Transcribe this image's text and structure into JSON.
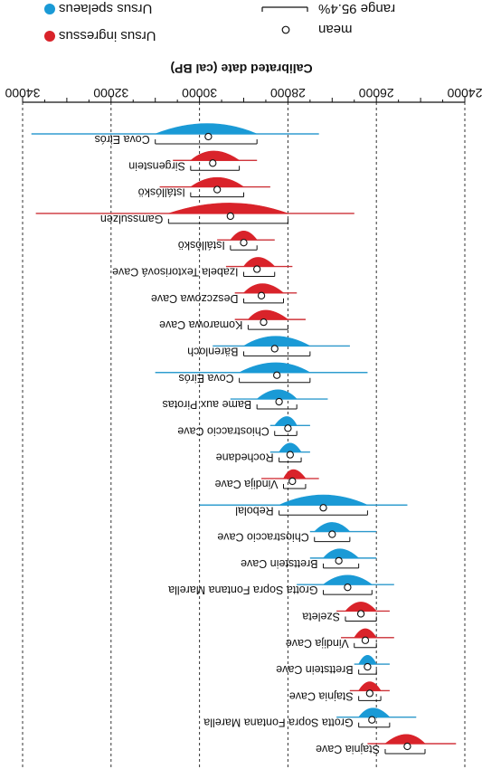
{
  "chart_data": {
    "type": "violin-range",
    "title": "",
    "xlabel": "Calibrated date (cal BP)",
    "ylabel": "",
    "xlim": [
      34000,
      24000
    ],
    "x_ticks": [
      "34000",
      "32000",
      "30000",
      "28000",
      "26000",
      "24000"
    ],
    "grid": "vertical dashed",
    "legend_placement": "top",
    "legend": {
      "species": [
        {
          "name": "Ursus spelaeus",
          "color": "#1a9ad6"
        },
        {
          "name": "Ursus ingressus",
          "color": "#d9232a"
        }
      ],
      "range_label": "range 95.4%",
      "mean_label": "mean"
    },
    "series": [
      {
        "site": "Cova Eirós",
        "species": "Ursus spelaeus",
        "mean": 29800,
        "range": [
          31000,
          28700
        ],
        "tail": [
          33800,
          27300
        ]
      },
      {
        "site": "Sirgenstein",
        "species": "Ursus ingressus",
        "mean": 29700,
        "range": [
          30200,
          29100
        ],
        "tail": [
          30600,
          28700
        ]
      },
      {
        "site": "Istállóskö",
        "species": "Ursus ingressus",
        "mean": 29600,
        "range": [
          30200,
          29000
        ],
        "tail": [
          30900,
          28400
        ]
      },
      {
        "site": "Gamssulzen",
        "species": "Ursus ingressus",
        "mean": 29300,
        "range": [
          30700,
          28000
        ],
        "tail": [
          33700,
          26500
        ]
      },
      {
        "site": "Istállóskö",
        "species": "Ursus ingressus",
        "mean": 29000,
        "range": [
          29300,
          28700
        ],
        "tail": [
          29600,
          28300
        ]
      },
      {
        "site": "Izabela Textorisová Cave",
        "species": "Ursus ingressus",
        "mean": 28700,
        "range": [
          29000,
          28300
        ],
        "tail": [
          29400,
          27900
        ]
      },
      {
        "site": "Deszczowa Cave",
        "species": "Ursus ingressus",
        "mean": 28600,
        "range": [
          29000,
          28100
        ],
        "tail": [
          29200,
          27800
        ]
      },
      {
        "site": "Komarowa Cave",
        "species": "Ursus ingressus",
        "mean": 28550,
        "range": [
          28900,
          28000
        ],
        "tail": [
          29200,
          27600
        ]
      },
      {
        "site": "Bärenloch",
        "species": "Ursus spelaeus",
        "mean": 28300,
        "range": [
          29000,
          27500
        ],
        "tail": [
          29700,
          26600
        ]
      },
      {
        "site": "Cova Eirós",
        "species": "Ursus spelaeus",
        "mean": 28250,
        "range": [
          29100,
          27500
        ],
        "tail": [
          31000,
          26200
        ]
      },
      {
        "site": "Bame aux Pirotas",
        "species": "Ursus spelaeus",
        "mean": 28200,
        "range": [
          28700,
          27800
        ],
        "tail": [
          29300,
          27100
        ]
      },
      {
        "site": "Chiostraccio Cave",
        "species": "Ursus spelaeus",
        "mean": 28000,
        "range": [
          28300,
          27800
        ],
        "tail": [
          28400,
          27500
        ]
      },
      {
        "site": "Rochedane",
        "species": "Ursus spelaeus",
        "mean": 27950,
        "range": [
          28200,
          27700
        ],
        "tail": [
          28400,
          27500
        ]
      },
      {
        "site": "Vindija Cave",
        "species": "Ursus ingressus",
        "mean": 27900,
        "range": [
          28100,
          27600
        ],
        "tail": [
          28600,
          27300
        ]
      },
      {
        "site": "Rebolal",
        "species": "Ursus spelaeus",
        "mean": 27200,
        "range": [
          28200,
          26200
        ],
        "tail": [
          30000,
          25300
        ]
      },
      {
        "site": "Chiostraccio Cave",
        "species": "Ursus spelaeus",
        "mean": 27000,
        "range": [
          27400,
          26600
        ],
        "tail": [
          27500,
          26000
        ]
      },
      {
        "site": "Brettstein Cave",
        "species": "Ursus spelaeus",
        "mean": 26850,
        "range": [
          27200,
          26400
        ],
        "tail": [
          27500,
          26000
        ]
      },
      {
        "site": "Grotta Sopra Fontana Marella",
        "species": "Ursus spelaeus",
        "mean": 26650,
        "range": [
          27200,
          26100
        ],
        "tail": [
          27800,
          25600
        ]
      },
      {
        "site": "Szeleta",
        "species": "Ursus ingressus",
        "mean": 26350,
        "range": [
          26700,
          26000
        ],
        "tail": [
          26900,
          25700
        ]
      },
      {
        "site": "Vindija Cave",
        "species": "Ursus ingressus",
        "mean": 26250,
        "range": [
          26500,
          26000
        ],
        "tail": [
          26800,
          25600
        ]
      },
      {
        "site": "Brettstein Cave",
        "species": "Ursus spelaeus",
        "mean": 26200,
        "range": [
          26400,
          26000
        ],
        "tail": [
          26500,
          25700
        ]
      },
      {
        "site": "Stajnia Cave",
        "species": "Ursus ingressus",
        "mean": 26150,
        "range": [
          26400,
          25900
        ],
        "tail": [
          26600,
          25700
        ]
      },
      {
        "site": "Grotta Sopra Fontana Marella",
        "species": "Ursus spelaeus",
        "mean": 26100,
        "range": [
          26400,
          25700
        ],
        "tail": [
          26900,
          25100
        ]
      },
      {
        "site": "Stajnia Cave",
        "species": "Ursus ingressus",
        "mean": 25300,
        "range": [
          25800,
          24900
        ],
        "tail": [
          26200,
          24200
        ]
      }
    ]
  }
}
